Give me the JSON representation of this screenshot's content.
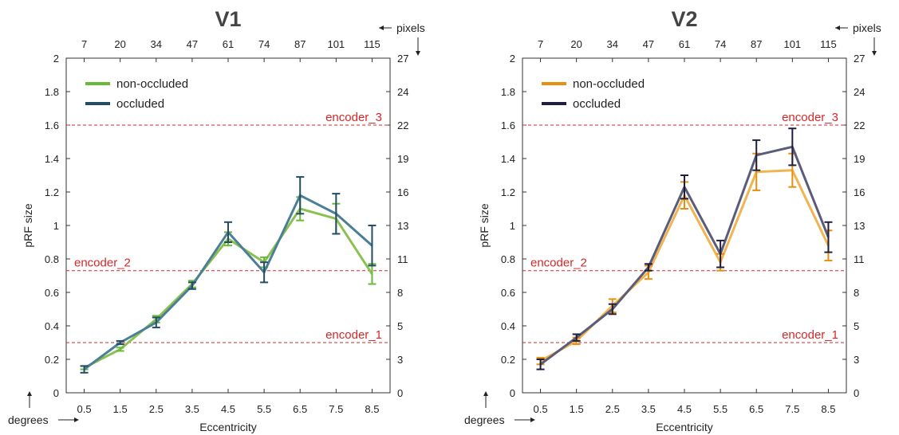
{
  "chart_data": [
    {
      "type": "line",
      "title": "V1",
      "xlabel": "Eccentricity",
      "ylabel": "pRF size",
      "x": [
        "0.5",
        "1.5",
        "2.5",
        "3.5",
        "4.5",
        "5.5",
        "6.5",
        "7.5",
        "8.5"
      ],
      "ylim": [
        0,
        2
      ],
      "yticks": [
        "0",
        "0.2",
        "0.4",
        "0.6",
        "0.8",
        "1",
        "1.2",
        "1.4",
        "1.6",
        "1.8",
        "2"
      ],
      "top_axis": {
        "label": "pixels",
        "ticks": [
          "7",
          "20",
          "34",
          "47",
          "61",
          "74",
          "87",
          "101",
          "115"
        ]
      },
      "right_axis": {
        "ticks": [
          "0",
          "3",
          "5",
          "8",
          "11",
          "13",
          "16",
          "19",
          "22",
          "24",
          "27"
        ]
      },
      "corner_label": "degrees",
      "series": [
        {
          "name": "non-occluded",
          "color": "#8cc152",
          "legend_color": "#6aba3a",
          "values": [
            0.15,
            0.26,
            0.44,
            0.65,
            0.92,
            0.78,
            1.1,
            1.04,
            0.71
          ],
          "err": [
            0.01,
            0.01,
            0.02,
            0.02,
            0.04,
            0.03,
            0.07,
            0.09,
            0.06
          ]
        },
        {
          "name": "occluded",
          "color": "#4a7f96",
          "legend_color": "#244c62",
          "values": [
            0.14,
            0.3,
            0.42,
            0.64,
            0.96,
            0.72,
            1.18,
            1.07,
            0.88
          ],
          "err": [
            0.02,
            0.01,
            0.03,
            0.02,
            0.06,
            0.06,
            0.11,
            0.12,
            0.12
          ]
        }
      ],
      "reference_lines": [
        {
          "label": "encoder_1",
          "y": 0.3
        },
        {
          "label": "encoder_2",
          "y": 0.73
        },
        {
          "label": "encoder_3",
          "y": 1.6
        }
      ],
      "grid": false,
      "legend_position": "top-left"
    },
    {
      "type": "line",
      "title": "V2",
      "xlabel": "Eccentricity",
      "ylabel": "pRF size",
      "x": [
        "0.5",
        "1.5",
        "2.5",
        "3.5",
        "4.5",
        "5.5",
        "6.5",
        "7.5",
        "8.5"
      ],
      "ylim": [
        0,
        2
      ],
      "yticks": [
        "0",
        "0.2",
        "0.4",
        "0.6",
        "0.8",
        "1",
        "1.2",
        "1.4",
        "1.6",
        "1.8",
        "2"
      ],
      "top_axis": {
        "label": "pixels",
        "ticks": [
          "7",
          "20",
          "34",
          "47",
          "61",
          "74",
          "87",
          "101",
          "115"
        ]
      },
      "right_axis": {
        "ticks": [
          "0",
          "3",
          "5",
          "8",
          "11",
          "13",
          "16",
          "19",
          "22",
          "24",
          "27"
        ]
      },
      "corner_label": "degrees",
      "series": [
        {
          "name": "non-occluded",
          "color": "#f0b452",
          "legend_color": "#e88f0f",
          "values": [
            0.19,
            0.31,
            0.52,
            0.72,
            1.18,
            0.78,
            1.32,
            1.33,
            0.88
          ],
          "err": [
            0.02,
            0.02,
            0.04,
            0.04,
            0.08,
            0.05,
            0.11,
            0.1,
            0.09
          ]
        },
        {
          "name": "occluded",
          "color": "#5b5b7a",
          "legend_color": "#1f1f3d",
          "values": [
            0.17,
            0.33,
            0.5,
            0.75,
            1.23,
            0.83,
            1.42,
            1.47,
            0.93
          ],
          "err": [
            0.03,
            0.02,
            0.03,
            0.02,
            0.07,
            0.08,
            0.09,
            0.11,
            0.09
          ]
        }
      ],
      "reference_lines": [
        {
          "label": "encoder_1",
          "y": 0.3
        },
        {
          "label": "encoder_2",
          "y": 0.73
        },
        {
          "label": "encoder_3",
          "y": 1.6
        }
      ],
      "grid": false,
      "legend_position": "top-left"
    }
  ]
}
